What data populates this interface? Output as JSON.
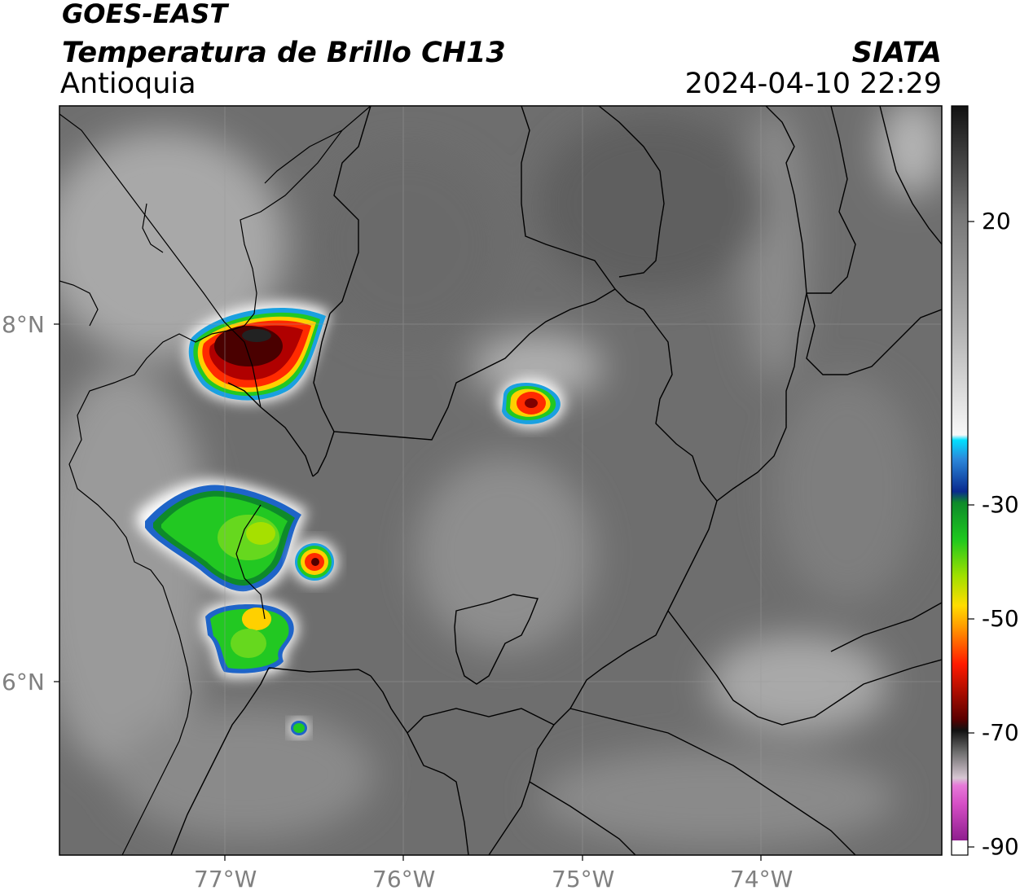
{
  "header": {
    "title_line1": "GOES-EAST",
    "title_line2": "Temperatura de Brillo CH13",
    "region": "Antioquia",
    "organization": "SIATA",
    "datetime": "2024-04-10 22:29"
  },
  "map": {
    "lon_ticks": [
      "77°W",
      "76°W",
      "75°W",
      "74°W"
    ],
    "lat_ticks": [
      "8°N",
      "6°N"
    ]
  },
  "colorbar": {
    "tick_labels": [
      "20",
      "-30",
      "-50",
      "-70",
      "-90"
    ]
  },
  "colors": {
    "background_gray": "#6e6e6e",
    "border_lines": "#000000",
    "grid": "#9a9a9a",
    "axis_text": "#808080"
  }
}
